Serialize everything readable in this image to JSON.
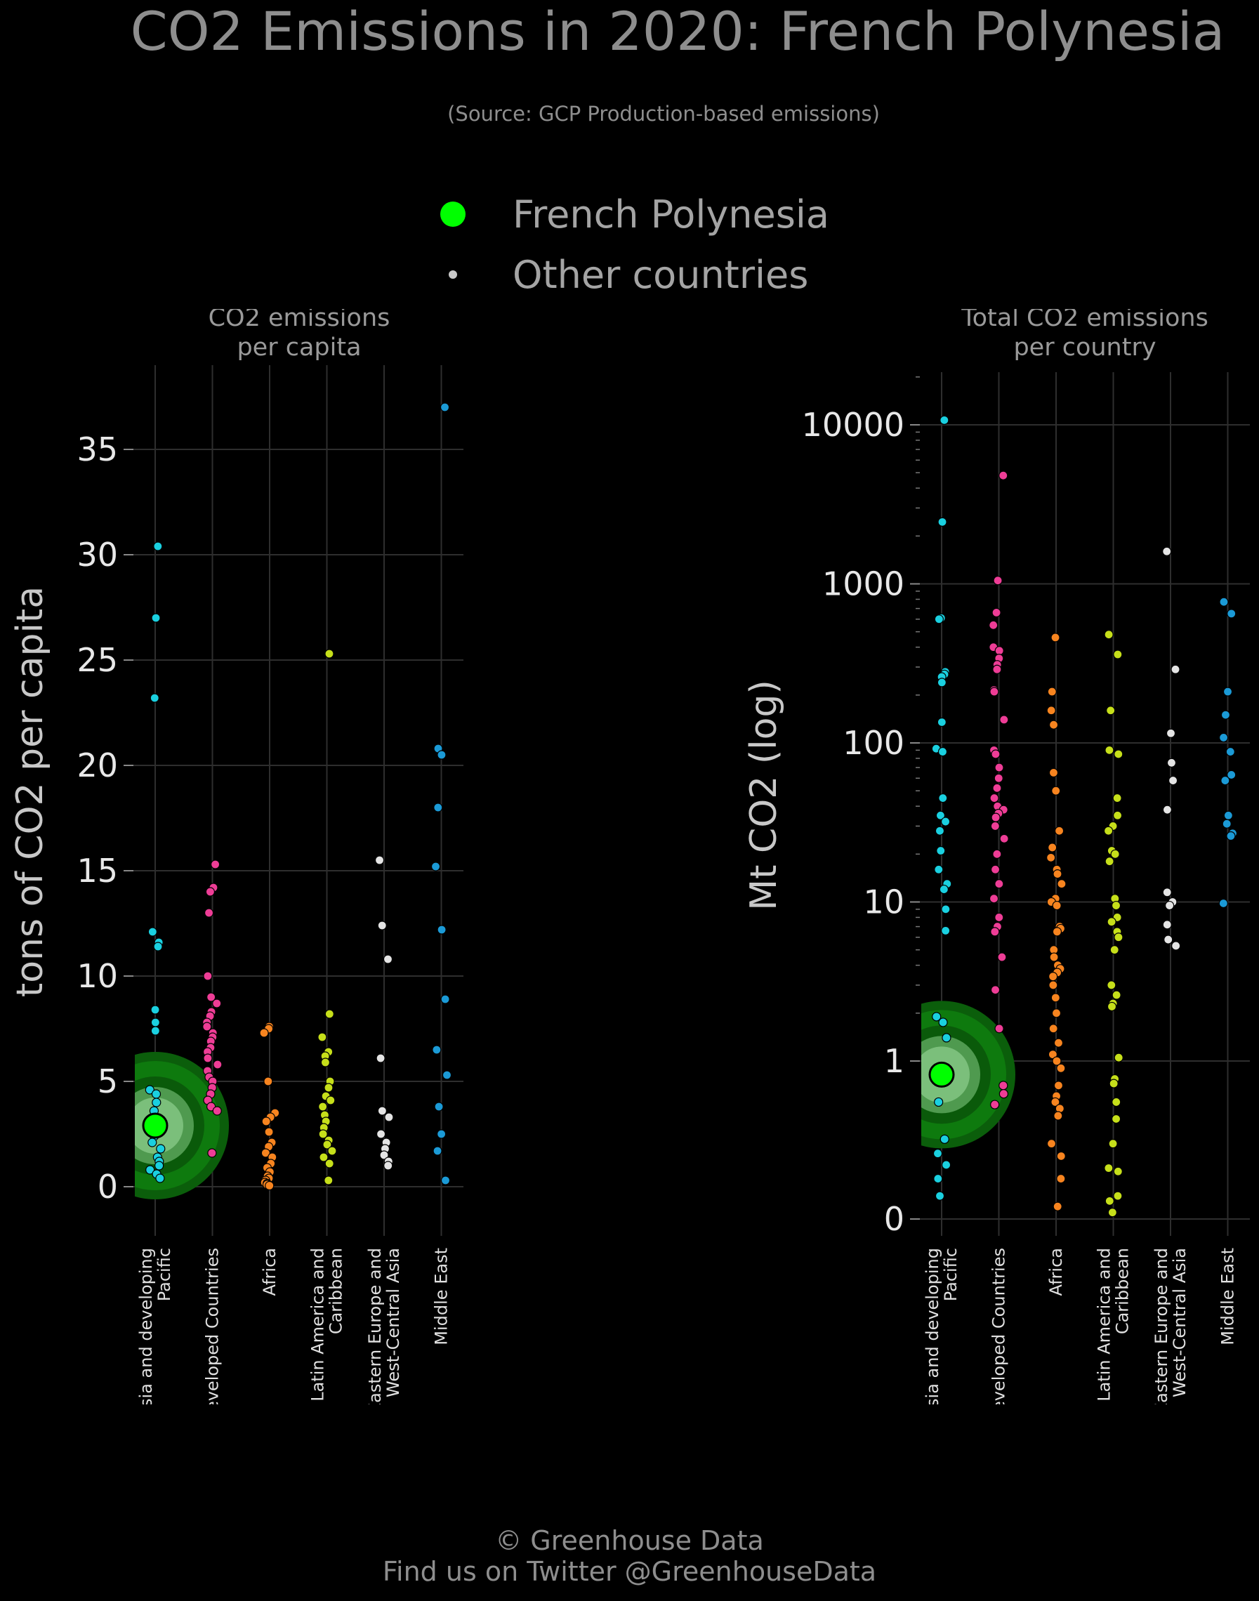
{
  "title": "CO2 Emissions in 2020: French Polynesia",
  "subtitle": "(Source: GCP Production-based emissions)",
  "legend": {
    "highlight_label": "French Polynesia",
    "other_label": "Other countries",
    "highlight_color": "#00ff00",
    "other_color": "#c8c8c8"
  },
  "footer": {
    "line1": "© Greenhouse Data",
    "line2": "Find us on Twitter @GreenhouseData"
  },
  "colors": {
    "Asia and developing Pacific": "#1ad0e0",
    "Developed Countries": "#ee3d96",
    "Africa": "#f7841f",
    "Latin America and Caribbean": "#c6df1a",
    "Eastern Europe and West-Central Asia": "#e4e4e4",
    "Middle East": "#1b9ad6"
  },
  "chart_data": [
    {
      "type": "scatter",
      "title": "CO2 emissions\nper capita",
      "ylabel": "tons of CO2 per capita",
      "ylim": [
        -1.5,
        39
      ],
      "yticks": [
        0,
        5,
        10,
        15,
        20,
        25,
        30,
        35
      ],
      "ytick_labels": [
        "0",
        "5",
        "10",
        "15",
        "20",
        "25",
        "30",
        "35"
      ],
      "grid": true,
      "categories": [
        "Asia and developing\nPacific",
        "Developed Countries",
        "Africa",
        "Latin America and\nCaribbean",
        "Eastern Europe and\nWest-Central Asia",
        "Middle East"
      ],
      "highlight": {
        "category": 0,
        "value": 2.9
      },
      "series": [
        {
          "category": 0,
          "values": [
            30.4,
            27.0,
            23.2,
            12.1,
            11.6,
            11.4,
            8.4,
            7.8,
            7.4,
            4.6,
            4.4,
            4.0,
            3.6,
            3.2,
            2.8,
            2.4,
            2.1,
            1.8,
            1.4,
            1.2,
            1.0,
            0.8,
            0.6,
            0.4
          ]
        },
        {
          "category": 1,
          "values": [
            15.3,
            14.2,
            14.0,
            13.0,
            10.0,
            9.0,
            8.7,
            8.3,
            8.1,
            7.8,
            7.6,
            7.3,
            7.1,
            6.9,
            6.6,
            6.4,
            6.1,
            5.8,
            5.5,
            5.2,
            5.0,
            4.7,
            4.4,
            4.1,
            3.8,
            3.6,
            1.6
          ]
        },
        {
          "category": 2,
          "values": [
            7.6,
            7.5,
            7.3,
            5.0,
            3.5,
            3.3,
            3.1,
            2.6,
            2.1,
            1.9,
            1.6,
            1.4,
            1.1,
            0.9,
            0.7,
            0.5,
            0.4,
            0.3,
            0.2,
            0.15,
            0.1,
            0.05
          ]
        },
        {
          "category": 3,
          "values": [
            25.3,
            8.2,
            7.1,
            6.4,
            6.2,
            5.9,
            5.0,
            4.7,
            4.3,
            4.1,
            3.8,
            3.4,
            3.1,
            2.8,
            2.5,
            2.2,
            2.0,
            1.7,
            1.4,
            1.1,
            0.3
          ]
        },
        {
          "category": 4,
          "values": [
            15.5,
            12.4,
            10.8,
            6.1,
            3.6,
            3.3,
            2.5,
            2.1,
            1.8,
            1.5,
            1.2,
            1.0
          ]
        },
        {
          "category": 5,
          "values": [
            37.0,
            20.8,
            20.5,
            18.0,
            15.2,
            12.2,
            8.9,
            6.5,
            5.3,
            3.8,
            2.5,
            1.7,
            0.3
          ]
        }
      ]
    },
    {
      "type": "scatter",
      "title": "Total CO2 emissions\nper country",
      "ylabel": "Mt CO2 (log)",
      "yscale": "log",
      "ytick_values": [
        0,
        1,
        10,
        100,
        1000,
        10000
      ],
      "ytick_labels": [
        "0",
        "1",
        "10",
        "100",
        "1000",
        "10000"
      ],
      "grid": true,
      "categories": [
        "Asia and developing\nPacific",
        "Developed Countries",
        "Africa",
        "Latin America and\nCaribbean",
        "Eastern Europe and\nWest-Central Asia",
        "Middle East"
      ],
      "highlight": {
        "category": 0,
        "value": 0.82
      },
      "series": [
        {
          "category": 0,
          "values": [
            10700,
            2450,
            610,
            600,
            280,
            270,
            260,
            240,
            135,
            92,
            88,
            45,
            35,
            32,
            28,
            21,
            16,
            13,
            12,
            9,
            6.6,
            1.9,
            1.75,
            1.4,
            0.55,
            0.32,
            0.26,
            0.22,
            0.18,
            0.14
          ]
        },
        {
          "category": 1,
          "values": [
            4800,
            1050,
            660,
            550,
            400,
            380,
            340,
            310,
            290,
            215,
            210,
            140,
            90,
            85,
            70,
            60,
            52,
            45,
            40,
            38,
            36,
            34,
            30,
            25,
            20,
            16,
            13,
            10.5,
            8,
            7,
            6.5,
            4.5,
            2.8,
            1.6,
            0.7,
            0.62,
            0.53
          ]
        },
        {
          "category": 2,
          "values": [
            460,
            210,
            160,
            130,
            65,
            50,
            28,
            22,
            19,
            16,
            15,
            13,
            10.5,
            10,
            9.5,
            7,
            6.8,
            6.5,
            5,
            4.5,
            4,
            3.8,
            3.6,
            3.4,
            3,
            2.5,
            2,
            1.6,
            1.3,
            1.1,
            1.0,
            0.9,
            0.7,
            0.6,
            0.55,
            0.5,
            0.45,
            0.3,
            0.25,
            0.18,
            0.12
          ]
        },
        {
          "category": 3,
          "values": [
            480,
            360,
            160,
            90,
            85,
            45,
            35,
            30,
            28,
            21,
            20,
            18,
            10.5,
            9.5,
            8,
            7.5,
            6.5,
            6,
            5,
            3,
            2.6,
            2.3,
            2.2,
            1.05,
            0.77,
            0.72,
            0.55,
            0.43,
            0.3,
            0.21,
            0.2,
            0.14,
            0.13,
            0.11
          ]
        },
        {
          "category": 4,
          "values": [
            1600,
            290,
            115,
            75,
            58,
            38,
            11.5,
            10,
            9.5,
            7.2,
            5.8,
            5.3
          ]
        },
        {
          "category": 5,
          "values": [
            770,
            650,
            210,
            150,
            108,
            88,
            63,
            58,
            35,
            31,
            27,
            26,
            9.8
          ]
        }
      ]
    }
  ]
}
